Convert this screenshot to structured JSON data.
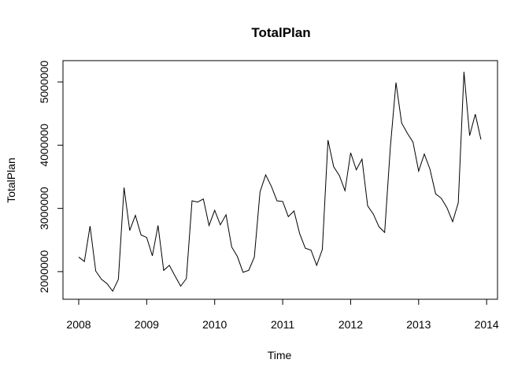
{
  "chart_data": {
    "type": "line",
    "title": "TotalPlan",
    "xlabel": "Time",
    "ylabel": "TotalPlan",
    "xlim": [
      2008.0,
      2013.917
    ],
    "ylim": [
      1700000,
      5200000
    ],
    "grid": false,
    "x_ticks": [
      2008,
      2009,
      2010,
      2011,
      2012,
      2013,
      2014
    ],
    "x_tick_labels": [
      "2008",
      "2009",
      "2010",
      "2011",
      "2012",
      "2013",
      "2014"
    ],
    "y_ticks": [
      2000000,
      3000000,
      4000000,
      5000000
    ],
    "y_tick_labels": [
      "2000000",
      "3000000",
      "4000000",
      "5000000"
    ],
    "series": [
      {
        "start": 2008.0,
        "frequency": 12,
        "values": [
          2230000,
          2160000,
          2720000,
          2010000,
          1880000,
          1810000,
          1690000,
          1880000,
          3330000,
          2650000,
          2890000,
          2580000,
          2540000,
          2250000,
          2730000,
          2020000,
          2100000,
          1930000,
          1770000,
          1890000,
          3120000,
          3100000,
          3150000,
          2730000,
          2970000,
          2740000,
          2900000,
          2390000,
          2240000,
          1990000,
          2020000,
          2230000,
          3260000,
          3530000,
          3350000,
          3120000,
          3110000,
          2870000,
          2960000,
          2600000,
          2370000,
          2340000,
          2100000,
          2350000,
          4080000,
          3660000,
          3520000,
          3280000,
          3880000,
          3610000,
          3780000,
          3040000,
          2910000,
          2710000,
          2620000,
          3960000,
          4990000,
          4350000,
          4190000,
          4050000,
          3590000,
          3860000,
          3620000,
          3230000,
          3160000,
          3010000,
          2790000,
          3090000,
          5160000,
          4150000,
          4490000,
          4090000
        ]
      }
    ]
  }
}
